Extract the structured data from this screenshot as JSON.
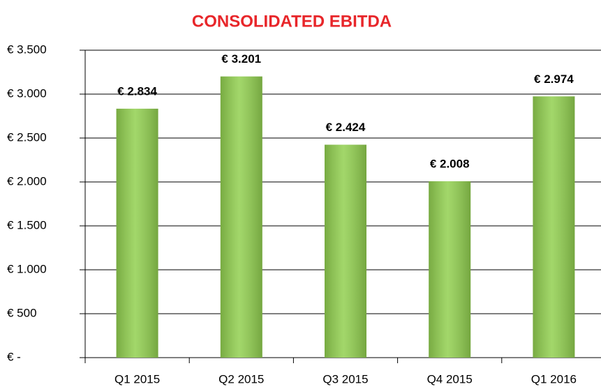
{
  "chart_data": {
    "type": "bar",
    "title": "CONSOLIDATED EBITDA",
    "categories": [
      "Q1 2015",
      "Q2 2015",
      "Q3 2015",
      "Q4 2015",
      "Q1 2016"
    ],
    "values": [
      2834,
      3201,
      2424,
      2008,
      2974
    ],
    "value_labels": [
      "€ 2.834",
      "€ 3.201",
      "€ 2.424",
      "€ 2.008",
      "€ 2.974"
    ],
    "color": "#92d050",
    "ylim": [
      0,
      3500
    ],
    "yticks": [
      {
        "value": 0,
        "label": "€ -"
      },
      {
        "value": 500,
        "label": "€ 500"
      },
      {
        "value": 1000,
        "label": "€ 1.000"
      },
      {
        "value": 1500,
        "label": "€ 1.500"
      },
      {
        "value": 2000,
        "label": "€ 2.000"
      },
      {
        "value": 2500,
        "label": "€ 2.500"
      },
      {
        "value": 3000,
        "label": "€ 3.000"
      },
      {
        "value": 3500,
        "label": "€ 3.500"
      }
    ],
    "grid": true
  }
}
